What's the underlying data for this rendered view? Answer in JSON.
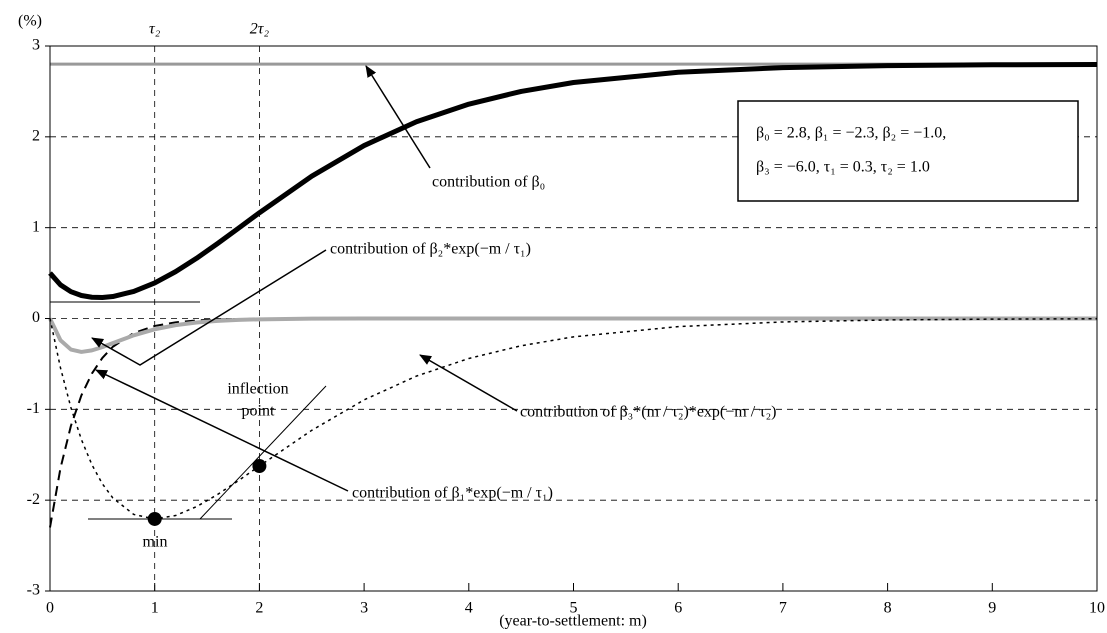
{
  "chart_data": {
    "type": "line",
    "y_unit": "(%)",
    "x_label": "(year-to-settlement: m)",
    "x": [
      0,
      0.1,
      0.2,
      0.3,
      0.4,
      0.5,
      0.6,
      0.8,
      1,
      1.2,
      1.4,
      1.6,
      1.8,
      2,
      2.5,
      3,
      3.5,
      4,
      4.5,
      5,
      6,
      7,
      8,
      9,
      10
    ],
    "series": [
      {
        "color": "#999999",
        "width": 3,
        "dash": "none",
        "values": [
          2.8,
          2.8,
          2.8,
          2.8,
          2.8,
          2.8,
          2.8,
          2.8,
          2.8,
          2.8,
          2.8,
          2.8,
          2.8,
          2.8,
          2.8,
          2.8,
          2.8,
          2.8,
          2.8,
          2.8,
          2.8,
          2.8,
          2.8,
          2.8,
          2.8
        ]
      },
      {
        "color": "#000000",
        "width": 5,
        "dash": "none",
        "values": [
          0.5,
          0.37,
          0.295,
          0.253,
          0.234,
          0.231,
          0.242,
          0.298,
          0.392,
          0.516,
          0.663,
          0.825,
          0.994,
          1.164,
          1.567,
          1.904,
          2.166,
          2.36,
          2.5,
          2.598,
          2.711,
          2.762,
          2.784,
          2.793,
          2.797
        ]
      },
      {
        "color": "#000000",
        "width": 2,
        "dash": "10,6",
        "values": [
          -2.3,
          -1.648,
          -1.181,
          -0.846,
          -0.606,
          -0.434,
          -0.311,
          -0.16,
          -0.082,
          -0.042,
          -0.022,
          -0.011,
          -0.006,
          -0.003,
          0,
          0,
          0,
          0,
          0,
          0,
          0,
          0,
          0,
          0,
          0
        ]
      },
      {
        "color": "#aaaaaa",
        "width": 4,
        "dash": "none",
        "values": [
          0,
          -0.239,
          -0.342,
          -0.368,
          -0.351,
          -0.315,
          -0.271,
          -0.185,
          -0.119,
          -0.073,
          -0.044,
          -0.026,
          -0.015,
          -0.009,
          -0.002,
          0,
          0,
          0,
          0,
          0,
          0,
          0,
          0,
          0,
          0
        ]
      },
      {
        "color": "#000000",
        "width": 1.5,
        "dash": "3,4",
        "values": [
          0,
          -0.543,
          -0.982,
          -1.333,
          -1.609,
          -1.82,
          -1.976,
          -2.157,
          -2.207,
          -2.169,
          -2.071,
          -1.938,
          -1.785,
          -1.624,
          -1.231,
          -0.896,
          -0.634,
          -0.44,
          -0.3,
          -0.202,
          -0.089,
          -0.038,
          -0.016,
          -0.007,
          -0.003
        ]
      }
    ],
    "xlim": [
      0,
      10
    ],
    "xticks": [
      0,
      1,
      2,
      3,
      4,
      5,
      6,
      7,
      8,
      9,
      10
    ],
    "ylim": [
      -3,
      3
    ],
    "yticks": [
      -3,
      -2,
      -1,
      0,
      1,
      2,
      3
    ],
    "grid": true,
    "vlines": [
      {
        "value": 1,
        "label": "τ₂"
      },
      {
        "value": 2,
        "label": "2τ₂"
      }
    ],
    "point_labels": [
      "min",
      "inflection",
      "point"
    ],
    "annotations": [
      "contribution of β₀",
      "contribution of β₂*exp(−m / τ₁)",
      "contribution of β₃*(m / τ₂)*exp(−m / τ₂)",
      "contribution of β₁*exp(−m / τ₁)"
    ],
    "parameter_box": [
      "β₀ = 2.8, β₁ = −2.3, β₂ = −1.0,",
      "β₃ = −6.0, τ₁ = 0.3, τ₂ = 1.0"
    ]
  }
}
